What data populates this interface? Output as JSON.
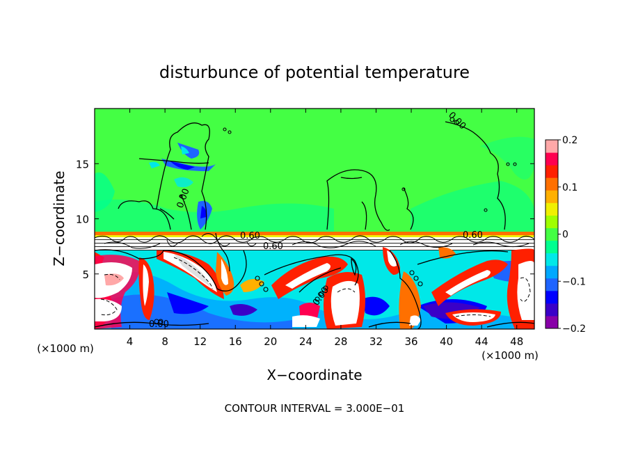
{
  "chart_data": {
    "type": "heatmap",
    "title": "disturbunce of potential temperature",
    "xlabel": "X−coordinate",
    "ylabel": "Z−coordinate",
    "x_unit_left": "(×1000 m)",
    "x_unit_right": "(×1000 m)",
    "xlim": [
      0,
      50
    ],
    "ylim": [
      0,
      20
    ],
    "x_ticks": [
      4,
      8,
      12,
      16,
      20,
      24,
      28,
      32,
      36,
      40,
      44,
      48
    ],
    "y_ticks": [
      5,
      10,
      15
    ],
    "colorbar": {
      "range": [
        -0.2,
        0.2
      ],
      "tick_values": [
        0.2,
        0.1,
        0,
        -0.1,
        -0.2
      ],
      "tick_labels": [
        "0.2",
        "0.1",
        "0",
        "−0.1",
        "−0.2"
      ],
      "colors": [
        "#8800a8",
        "#3a00c8",
        "#0000ff",
        "#1e64ff",
        "#00a8ff",
        "#00e8e8",
        "#00ff90",
        "#44ff44",
        "#a0ff00",
        "#f0f000",
        "#ffb000",
        "#ff7000",
        "#ff2000",
        "#ff0050",
        "#ffa8a8"
      ]
    },
    "contour_labels": [
      "0.00",
      "0.00",
      "0.00",
      "0.00",
      "0.60",
      "0.60",
      "0.60"
    ],
    "contour_interval_text": "CONTOUR INTERVAL = 3.000E−01",
    "background_color": "#44ff44"
  }
}
